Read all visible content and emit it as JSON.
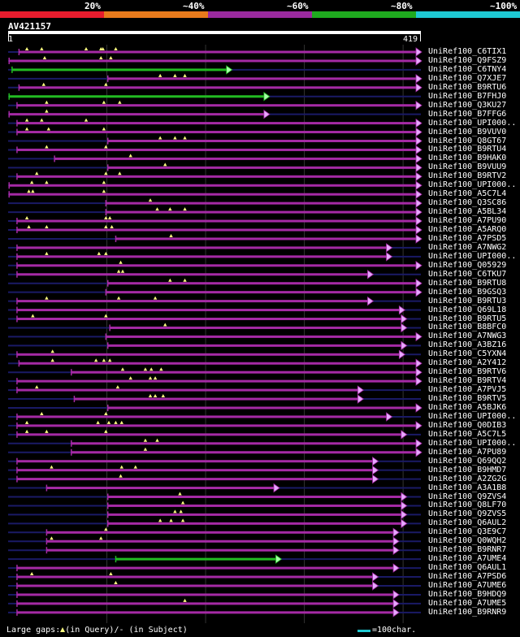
{
  "scale": {
    "labels": [
      "20%",
      "~40%",
      "~60%",
      "~80%",
      "~100%"
    ],
    "colors": [
      "#e81c2d",
      "#e87a1c",
      "#9a2a9e",
      "#1faa1f",
      "#1ec8d2"
    ]
  },
  "query": {
    "id": "AV421157",
    "start": "1",
    "end": "419",
    "length": 419
  },
  "hits": [
    {
      "name": "UniRef100_C6TIX1",
      "start": 12,
      "end": 419,
      "color": "purple",
      "ins": [
        20,
        35,
        80,
        95,
        97,
        110
      ]
    },
    {
      "name": "UniRef100_Q9FSZ9",
      "start": 2,
      "end": 419,
      "color": "purple",
      "ins": [
        38,
        95,
        105
      ]
    },
    {
      "name": "UniRef100_C6TNY4",
      "start": 5,
      "end": 227,
      "color": "green",
      "ins": []
    },
    {
      "name": "UniRef100_Q7XJE7",
      "start": 102,
      "end": 419,
      "color": "purple",
      "ins": [
        155,
        170,
        180
      ]
    },
    {
      "name": "UniRef100_B9RTU6",
      "start": 12,
      "end": 419,
      "color": "purple",
      "ins": [
        37,
        100
      ]
    },
    {
      "name": "UniRef100_B7FHJ0",
      "start": 2,
      "end": 265,
      "color": "green",
      "ins": []
    },
    {
      "name": "UniRef100_Q3KU27",
      "start": 10,
      "end": 419,
      "color": "purple",
      "ins": [
        40,
        98,
        114
      ]
    },
    {
      "name": "UniRef100_B7FFG6",
      "start": 2,
      "end": 265,
      "color": "purple",
      "ins": [
        40
      ]
    },
    {
      "name": "UniRef100_UPI000..",
      "start": 10,
      "end": 419,
      "color": "purple",
      "ins": [
        20,
        35,
        80
      ]
    },
    {
      "name": "UniRef100_B9VUV0",
      "start": 10,
      "end": 419,
      "color": "purple",
      "ins": [
        20,
        42,
        98
      ]
    },
    {
      "name": "UniRef100_Q8GT67",
      "start": 102,
      "end": 419,
      "color": "purple",
      "ins": [
        155,
        170,
        180
      ]
    },
    {
      "name": "UniRef100_B9RTU4",
      "start": 10,
      "end": 419,
      "color": "purple",
      "ins": [
        40,
        100
      ]
    },
    {
      "name": "UniRef100_B9HAK0",
      "start": 48,
      "end": 419,
      "color": "purple",
      "ins": [
        125
      ]
    },
    {
      "name": "UniRef100_B9VUU9",
      "start": 102,
      "end": 419,
      "color": "purple",
      "ins": [
        160
      ]
    },
    {
      "name": "UniRef100_B9RTV2",
      "start": 10,
      "end": 419,
      "color": "purple",
      "ins": [
        30,
        100,
        114
      ]
    },
    {
      "name": "UniRef100_UPI000..",
      "start": 2,
      "end": 419,
      "color": "purple",
      "ins": [
        25,
        40,
        98
      ]
    },
    {
      "name": "UniRef100_A5C7L4",
      "start": 2,
      "end": 419,
      "color": "purple",
      "ins": [
        22,
        26,
        98
      ]
    },
    {
      "name": "UniRef100_Q3SC86",
      "start": 100,
      "end": 419,
      "color": "purple",
      "ins": [
        145
      ]
    },
    {
      "name": "UniRef100_A5BL34",
      "start": 100,
      "end": 419,
      "color": "purple",
      "ins": [
        152,
        165,
        180
      ]
    },
    {
      "name": "UniRef100_A7PU90",
      "start": 10,
      "end": 419,
      "color": "purple",
      "ins": [
        20,
        100,
        104
      ]
    },
    {
      "name": "UniRef100_A5ARQ0",
      "start": 10,
      "end": 419,
      "color": "purple",
      "ins": [
        22,
        40,
        100,
        106
      ]
    },
    {
      "name": "UniRef100_A7PSD5",
      "start": 110,
      "end": 419,
      "color": "purple",
      "ins": [
        166
      ]
    },
    {
      "name": "UniRef100_A7NWG2",
      "start": 10,
      "end": 389,
      "color": "purple",
      "ins": []
    },
    {
      "name": "UniRef100_UPI000..",
      "start": 10,
      "end": 389,
      "color": "purple",
      "ins": [
        40,
        93,
        100
      ]
    },
    {
      "name": "UniRef100_Q05929",
      "start": 10,
      "end": 419,
      "color": "purple",
      "ins": [
        115
      ]
    },
    {
      "name": "UniRef100_C6TKU7",
      "start": 10,
      "end": 370,
      "color": "purple",
      "ins": [
        113,
        117
      ]
    },
    {
      "name": "UniRef100_B9RTU8",
      "start": 102,
      "end": 419,
      "color": "purple",
      "ins": [
        165,
        180
      ]
    },
    {
      "name": "UniRef100_B9GSQ3",
      "start": 100,
      "end": 419,
      "color": "purple",
      "ins": []
    },
    {
      "name": "UniRef100_B9RTU3",
      "start": 10,
      "end": 370,
      "color": "purple",
      "ins": [
        40,
        113,
        150
      ]
    },
    {
      "name": "UniRef100_Q69L18",
      "start": 10,
      "end": 402,
      "color": "purple",
      "ins": []
    },
    {
      "name": "UniRef100_B9RTU5",
      "start": 10,
      "end": 404,
      "color": "purple",
      "ins": [
        26,
        100
      ]
    },
    {
      "name": "UniRef100_B8BFC0",
      "start": 104,
      "end": 404,
      "color": "purple",
      "ins": [
        160
      ]
    },
    {
      "name": "UniRef100_A7NWG3",
      "start": 100,
      "end": 419,
      "color": "purple",
      "ins": []
    },
    {
      "name": "UniRef100_A3BZ16",
      "start": 102,
      "end": 404,
      "color": "purple",
      "ins": []
    },
    {
      "name": "UniRef100_C5YXN4",
      "start": 10,
      "end": 402,
      "color": "purple",
      "ins": [
        46
      ]
    },
    {
      "name": "UniRef100_A2Y412",
      "start": 12,
      "end": 419,
      "color": "purple",
      "ins": [
        46,
        90,
        98,
        104
      ]
    },
    {
      "name": "UniRef100_B9RTV6",
      "start": 65,
      "end": 419,
      "color": "purple",
      "ins": [
        117,
        140,
        146,
        156
      ]
    },
    {
      "name": "UniRef100_B9RTV4",
      "start": 10,
      "end": 419,
      "color": "purple",
      "ins": [
        125,
        145,
        150
      ]
    },
    {
      "name": "UniRef100_A7PVJ5",
      "start": 10,
      "end": 360,
      "color": "purple",
      "ins": [
        30,
        112
      ]
    },
    {
      "name": "UniRef100_B9RTV5",
      "start": 68,
      "end": 360,
      "color": "purple",
      "ins": [
        145,
        150,
        158
      ]
    },
    {
      "name": "UniRef100_A5BJK6",
      "start": 102,
      "end": 419,
      "color": "purple",
      "ins": []
    },
    {
      "name": "UniRef100_UPI000..",
      "start": 10,
      "end": 389,
      "color": "purple",
      "ins": [
        35,
        100
      ]
    },
    {
      "name": "UniRef100_Q0DIB3",
      "start": 10,
      "end": 419,
      "color": "purple",
      "ins": [
        20,
        92,
        103,
        110,
        116
      ]
    },
    {
      "name": "UniRef100_A5C7L5",
      "start": 10,
      "end": 404,
      "color": "purple",
      "ins": [
        20,
        40,
        100
      ]
    },
    {
      "name": "UniRef100_UPI000..",
      "start": 65,
      "end": 419,
      "color": "purple",
      "ins": [
        140,
        152
      ]
    },
    {
      "name": "UniRef100_A7PU89",
      "start": 65,
      "end": 419,
      "color": "purple",
      "ins": [
        140
      ]
    },
    {
      "name": "UniRef100_Q69QQ2",
      "start": 10,
      "end": 375,
      "color": "purple",
      "ins": []
    },
    {
      "name": "UniRef100_B9HMD7",
      "start": 10,
      "end": 375,
      "color": "purple",
      "ins": [
        45,
        116,
        130
      ]
    },
    {
      "name": "UniRef100_A2ZG2G",
      "start": 10,
      "end": 375,
      "color": "purple",
      "ins": [
        115
      ]
    },
    {
      "name": "UniRef100_A3A1B8",
      "start": 40,
      "end": 275,
      "color": "purple",
      "ins": []
    },
    {
      "name": "UniRef100_Q9ZVS4",
      "start": 102,
      "end": 404,
      "color": "purple",
      "ins": [
        175
      ]
    },
    {
      "name": "UniRef100_Q8LF70",
      "start": 102,
      "end": 404,
      "color": "purple",
      "ins": [
        178
      ]
    },
    {
      "name": "UniRef100_Q9ZVS5",
      "start": 102,
      "end": 404,
      "color": "purple",
      "ins": [
        170,
        176
      ]
    },
    {
      "name": "UniRef100_Q6AUL2",
      "start": 102,
      "end": 404,
      "color": "purple",
      "ins": [
        155,
        166,
        178
      ]
    },
    {
      "name": "UniRef100_Q3E9C7",
      "start": 40,
      "end": 396,
      "color": "purple",
      "ins": [
        100
      ]
    },
    {
      "name": "UniRef100_Q0WQH2",
      "start": 40,
      "end": 396,
      "color": "purple",
      "ins": [
        45,
        95
      ]
    },
    {
      "name": "UniRef100_B9RNR7",
      "start": 40,
      "end": 396,
      "color": "purple",
      "ins": []
    },
    {
      "name": "UniRef100_A7UME4",
      "start": 110,
      "end": 277,
      "color": "green",
      "ins": []
    },
    {
      "name": "UniRef100_Q6AUL1",
      "start": 10,
      "end": 396,
      "color": "purple",
      "ins": []
    },
    {
      "name": "UniRef100_A7PSD6",
      "start": 10,
      "end": 375,
      "color": "purple",
      "ins": [
        25,
        105
      ]
    },
    {
      "name": "UniRef100_A7UME6",
      "start": 10,
      "end": 375,
      "color": "purple",
      "ins": [
        110
      ]
    },
    {
      "name": "UniRef100_B9HDQ9",
      "start": 10,
      "end": 396,
      "color": "purple",
      "ins": []
    },
    {
      "name": "UniRef100_A7UME5",
      "start": 10,
      "end": 396,
      "color": "purple",
      "ins": [
        180
      ]
    },
    {
      "name": "UniRef100_B9RNR9",
      "start": 10,
      "end": 396,
      "color": "purple",
      "ins": []
    }
  ],
  "legend": {
    "text_prefix": "Large gaps:",
    "text_query": "(in Query)/",
    "text_subject": "- (in Subject)",
    "unit": "=100char."
  },
  "colors": {
    "purple": "#a52aa5",
    "green": "#22bb22",
    "navy": "#1a1a66",
    "triangle": "#ffff80",
    "arrow_purple": "#e6a8ff",
    "arrow_green": "#a8ffa8"
  }
}
